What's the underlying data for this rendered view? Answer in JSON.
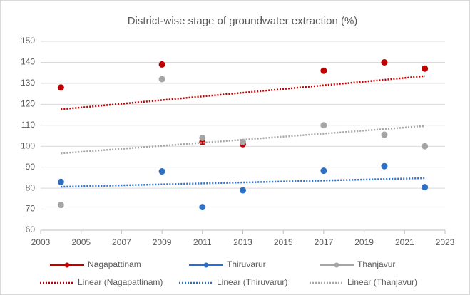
{
  "chart_data": {
    "type": "scatter",
    "title": "District-wise stage of groundwater extraction (%)",
    "x": [
      2004,
      2009,
      2011,
      2013,
      2017,
      2020,
      2022
    ],
    "series": [
      {
        "name": "Nagapattinam",
        "color": "#c00000",
        "values": [
          128,
          139,
          102,
          101,
          136,
          140,
          137
        ],
        "trendline": {
          "name": "Linear (Nagapattinam)",
          "type": "linear"
        }
      },
      {
        "name": "Thiruvarur",
        "color": "#2e6fc6",
        "values": [
          83,
          88,
          71,
          79,
          88.3,
          90.5,
          80.5
        ],
        "trendline": {
          "name": "Linear (Thiruvarur)",
          "type": "linear"
        }
      },
      {
        "name": "Thanjavur",
        "color": "#a5a5a5",
        "values": [
          72,
          132,
          104,
          102,
          110,
          105.5,
          100
        ],
        "trendline": {
          "name": "Linear (Thanjavur)",
          "type": "linear"
        }
      }
    ],
    "xlim": [
      2003,
      2023
    ],
    "xticks": [
      2003,
      2005,
      2007,
      2009,
      2011,
      2013,
      2015,
      2017,
      2019,
      2021,
      2023
    ],
    "ylim": [
      60,
      150
    ],
    "yticks": [
      60,
      70,
      80,
      90,
      100,
      110,
      120,
      130,
      140,
      150
    ],
    "grid": true,
    "legend": "bottom"
  }
}
